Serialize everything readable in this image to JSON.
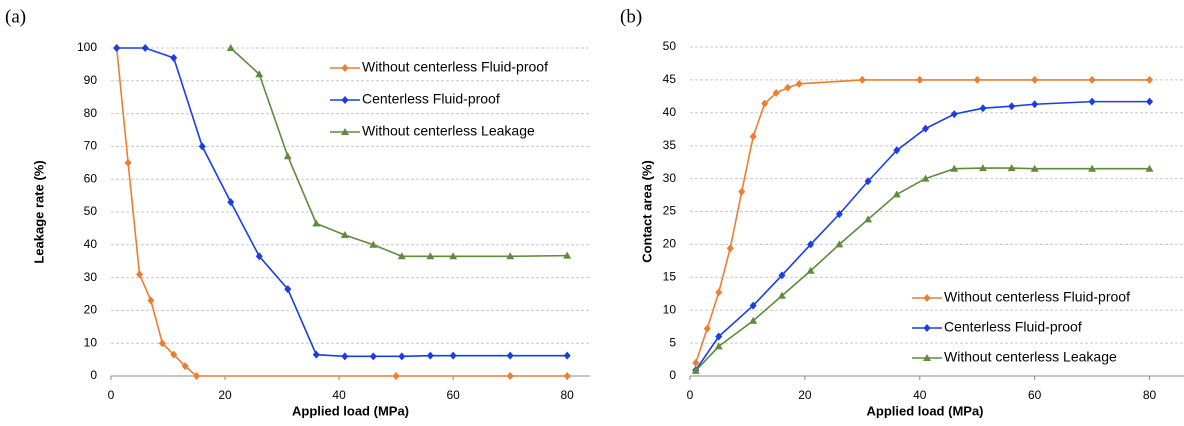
{
  "chart_data": [
    {
      "type": "line",
      "label": "(a)",
      "x_label": "Applied load (MPa)",
      "y_label": "Leakage rate (%)",
      "xlim": [
        0,
        84
      ],
      "xticks": [
        0,
        20,
        40,
        60,
        80
      ],
      "ylim": [
        0,
        100
      ],
      "yticks": [
        0,
        10,
        20,
        30,
        40,
        50,
        60,
        70,
        80,
        90,
        100
      ],
      "grid": true,
      "legend": "upper right",
      "series": [
        {
          "name": "Without centerless Fluid-proof",
          "color": "#ed7d31",
          "marker": "diamond",
          "x": [
            1,
            3,
            5,
            7,
            9,
            11,
            13,
            15,
            50,
            70,
            80
          ],
          "values": [
            100,
            65,
            31,
            23,
            10,
            6.5,
            3,
            0,
            0,
            0,
            0
          ]
        },
        {
          "name": "Centerless Fluid-proof",
          "color": "#1a3de6",
          "marker": "diamond",
          "x": [
            1,
            6,
            11,
            16,
            21,
            26,
            31,
            36,
            41,
            46,
            51,
            56,
            60,
            70,
            80
          ],
          "values": [
            100,
            100,
            97,
            70,
            53,
            36.5,
            26.5,
            6.5,
            6,
            6,
            6,
            6.2,
            6.2,
            6.2,
            6.2
          ]
        },
        {
          "name": "Without centerless Leakage",
          "color": "#5e8c3c",
          "marker": "triangle",
          "x": [
            21,
            26,
            31,
            36,
            41,
            46,
            51,
            56,
            60,
            70,
            80
          ],
          "values": [
            100,
            92,
            67,
            46.5,
            43,
            40,
            36.5,
            36.5,
            36.5,
            36.5,
            36.7
          ]
        }
      ]
    },
    {
      "type": "line",
      "label": "(b)",
      "x_label": "Applied load (MPa)",
      "y_label": "Contact area (%)",
      "xlim": [
        0,
        86
      ],
      "xticks": [
        0,
        20,
        40,
        60,
        80
      ],
      "ylim": [
        0,
        50
      ],
      "yticks": [
        0,
        5,
        10,
        15,
        20,
        25,
        30,
        35,
        40,
        45,
        50
      ],
      "grid": true,
      "legend": "lower right",
      "series": [
        {
          "name": "Without centerless Fluid-proof",
          "color": "#ed7d31",
          "marker": "diamond",
          "x": [
            1,
            3,
            5,
            7,
            9,
            11,
            13,
            15,
            17,
            19,
            30,
            40,
            50,
            60,
            70,
            80
          ],
          "values": [
            2,
            7.2,
            12.7,
            19.4,
            28,
            36.4,
            41.4,
            43,
            43.8,
            44.4,
            45,
            45,
            45,
            45,
            45,
            45
          ]
        },
        {
          "name": "Centerless Fluid-proof",
          "color": "#1a3de6",
          "marker": "diamond",
          "x": [
            1,
            5,
            11,
            16,
            21,
            26,
            31,
            36,
            41,
            46,
            51,
            56,
            60,
            70,
            80
          ],
          "values": [
            0.9,
            6,
            10.7,
            15.3,
            20,
            24.6,
            29.6,
            34.3,
            37.6,
            39.8,
            40.7,
            41,
            41.3,
            41.7,
            41.7
          ]
        },
        {
          "name": "Without centerless Leakage",
          "color": "#5e8c3c",
          "marker": "triangle",
          "x": [
            1,
            5,
            11,
            16,
            21,
            26,
            31,
            36,
            41,
            46,
            51,
            56,
            60,
            70,
            80
          ],
          "values": [
            0.8,
            4.5,
            8.4,
            12.2,
            16,
            20,
            23.8,
            27.6,
            30,
            31.5,
            31.6,
            31.6,
            31.5,
            31.5,
            31.5
          ]
        }
      ]
    }
  ]
}
